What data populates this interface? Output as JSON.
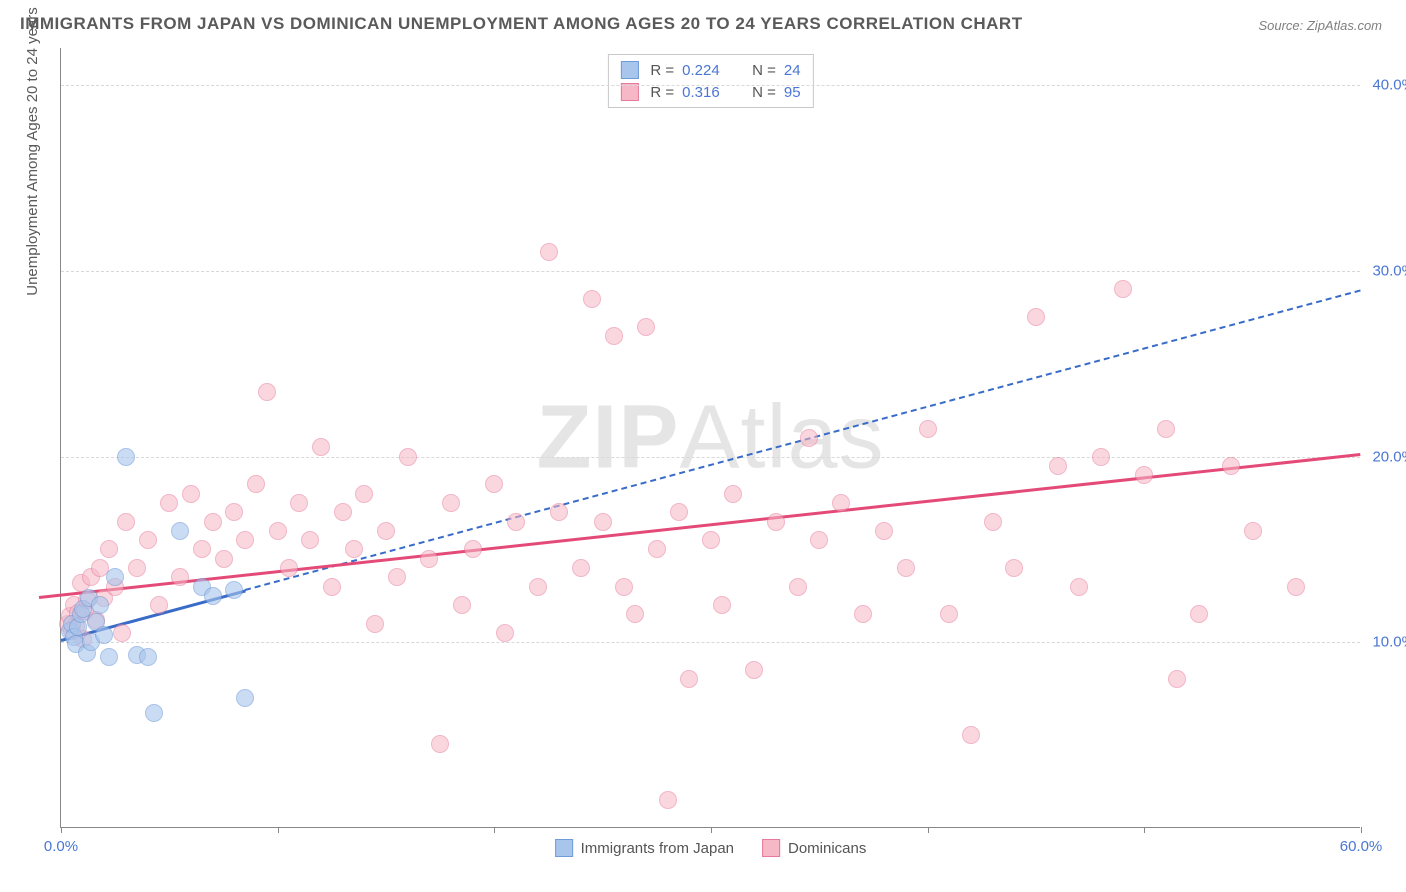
{
  "title": "IMMIGRANTS FROM JAPAN VS DOMINICAN UNEMPLOYMENT AMONG AGES 20 TO 24 YEARS CORRELATION CHART",
  "source": "Source: ZipAtlas.com",
  "y_axis_label": "Unemployment Among Ages 20 to 24 years",
  "watermark_bold": "ZIP",
  "watermark_rest": "Atlas",
  "chart": {
    "type": "scatter",
    "background_color": "#ffffff",
    "grid_color": "#d8d8d8",
    "axis_color": "#888888",
    "xlim": [
      0,
      60
    ],
    "ylim": [
      0,
      42
    ],
    "x_ticks": [
      0,
      10,
      20,
      30,
      40,
      50,
      60
    ],
    "x_tick_labels": {
      "0": "0.0%",
      "60": "60.0%"
    },
    "y_gridlines": [
      10,
      20,
      30,
      40
    ],
    "y_tick_labels": [
      "10.0%",
      "20.0%",
      "30.0%",
      "40.0%"
    ],
    "point_radius": 9,
    "point_stroke_width": 1.5,
    "series": [
      {
        "name": "Immigrants from Japan",
        "fill": "#a8c5ec",
        "stroke": "#6f9bd8",
        "fill_opacity": 0.6,
        "R": "0.224",
        "N": "24",
        "trend": {
          "x1": 0,
          "y1": 10.2,
          "x2": 60,
          "y2": 29.0,
          "color": "#396bc9",
          "width": 2,
          "dash": "5,5",
          "solid_until_x": 8.5
        },
        "points": [
          [
            0.4,
            10.6
          ],
          [
            0.5,
            11.0
          ],
          [
            0.6,
            10.3
          ],
          [
            0.7,
            9.9
          ],
          [
            0.8,
            10.8
          ],
          [
            0.9,
            11.5
          ],
          [
            1.0,
            11.8
          ],
          [
            1.2,
            9.4
          ],
          [
            1.3,
            12.4
          ],
          [
            1.4,
            10.0
          ],
          [
            1.6,
            11.1
          ],
          [
            1.8,
            12.0
          ],
          [
            2.0,
            10.4
          ],
          [
            2.2,
            9.2
          ],
          [
            2.5,
            13.5
          ],
          [
            3.0,
            20.0
          ],
          [
            3.5,
            9.3
          ],
          [
            4.0,
            9.2
          ],
          [
            4.3,
            6.2
          ],
          [
            5.5,
            16.0
          ],
          [
            6.5,
            13.0
          ],
          [
            7.0,
            12.5
          ],
          [
            8.0,
            12.8
          ],
          [
            8.5,
            7.0
          ]
        ]
      },
      {
        "name": "Dominicans",
        "fill": "#f6b7c6",
        "stroke": "#e77a9a",
        "fill_opacity": 0.55,
        "R": "0.316",
        "N": "95",
        "trend": {
          "x1": -1,
          "y1": 12.5,
          "x2": 60,
          "y2": 20.2,
          "color": "#e44a78",
          "width": 3,
          "dash": null
        },
        "points": [
          [
            0.3,
            11.0
          ],
          [
            0.4,
            11.4
          ],
          [
            0.5,
            10.6
          ],
          [
            0.6,
            12.0
          ],
          [
            0.7,
            10.9
          ],
          [
            0.8,
            11.6
          ],
          [
            0.9,
            13.2
          ],
          [
            1.0,
            10.2
          ],
          [
            1.1,
            11.7
          ],
          [
            1.2,
            12.3
          ],
          [
            1.4,
            13.5
          ],
          [
            1.6,
            11.2
          ],
          [
            1.8,
            14.0
          ],
          [
            2.0,
            12.4
          ],
          [
            2.2,
            15.0
          ],
          [
            2.5,
            13.0
          ],
          [
            2.8,
            10.5
          ],
          [
            3.0,
            16.5
          ],
          [
            3.5,
            14.0
          ],
          [
            4.0,
            15.5
          ],
          [
            4.5,
            12.0
          ],
          [
            5.0,
            17.5
          ],
          [
            5.5,
            13.5
          ],
          [
            6.0,
            18.0
          ],
          [
            6.5,
            15.0
          ],
          [
            7.0,
            16.5
          ],
          [
            7.5,
            14.5
          ],
          [
            8.0,
            17.0
          ],
          [
            8.5,
            15.5
          ],
          [
            9.0,
            18.5
          ],
          [
            9.5,
            23.5
          ],
          [
            10.0,
            16.0
          ],
          [
            10.5,
            14.0
          ],
          [
            11.0,
            17.5
          ],
          [
            11.5,
            15.5
          ],
          [
            12.0,
            20.5
          ],
          [
            12.5,
            13.0
          ],
          [
            13.0,
            17.0
          ],
          [
            13.5,
            15.0
          ],
          [
            14.0,
            18.0
          ],
          [
            14.5,
            11.0
          ],
          [
            15.0,
            16.0
          ],
          [
            15.5,
            13.5
          ],
          [
            16.0,
            20.0
          ],
          [
            17.0,
            14.5
          ],
          [
            17.5,
            4.5
          ],
          [
            18.0,
            17.5
          ],
          [
            18.5,
            12.0
          ],
          [
            19.0,
            15.0
          ],
          [
            20.0,
            18.5
          ],
          [
            20.5,
            10.5
          ],
          [
            21.0,
            16.5
          ],
          [
            22.0,
            13.0
          ],
          [
            22.5,
            31.0
          ],
          [
            23.0,
            17.0
          ],
          [
            24.0,
            14.0
          ],
          [
            24.5,
            28.5
          ],
          [
            25.0,
            16.5
          ],
          [
            25.5,
            26.5
          ],
          [
            26.0,
            13.0
          ],
          [
            26.5,
            11.5
          ],
          [
            27.0,
            27.0
          ],
          [
            27.5,
            15.0
          ],
          [
            28.0,
            1.5
          ],
          [
            28.5,
            17.0
          ],
          [
            29.0,
            8.0
          ],
          [
            30.0,
            15.5
          ],
          [
            30.5,
            12.0
          ],
          [
            31.0,
            18.0
          ],
          [
            32.0,
            8.5
          ],
          [
            33.0,
            16.5
          ],
          [
            34.0,
            13.0
          ],
          [
            34.5,
            21.0
          ],
          [
            35.0,
            15.5
          ],
          [
            36.0,
            17.5
          ],
          [
            37.0,
            11.5
          ],
          [
            38.0,
            16.0
          ],
          [
            39.0,
            14.0
          ],
          [
            40.0,
            21.5
          ],
          [
            41.0,
            11.5
          ],
          [
            42.0,
            5.0
          ],
          [
            43.0,
            16.5
          ],
          [
            44.0,
            14.0
          ],
          [
            45.0,
            27.5
          ],
          [
            46.0,
            19.5
          ],
          [
            47.0,
            13.0
          ],
          [
            48.0,
            20.0
          ],
          [
            49.0,
            29.0
          ],
          [
            50.0,
            19.0
          ],
          [
            51.0,
            21.5
          ],
          [
            51.5,
            8.0
          ],
          [
            52.5,
            11.5
          ],
          [
            54.0,
            19.5
          ],
          [
            55.0,
            16.0
          ],
          [
            57.0,
            13.0
          ]
        ]
      }
    ]
  }
}
